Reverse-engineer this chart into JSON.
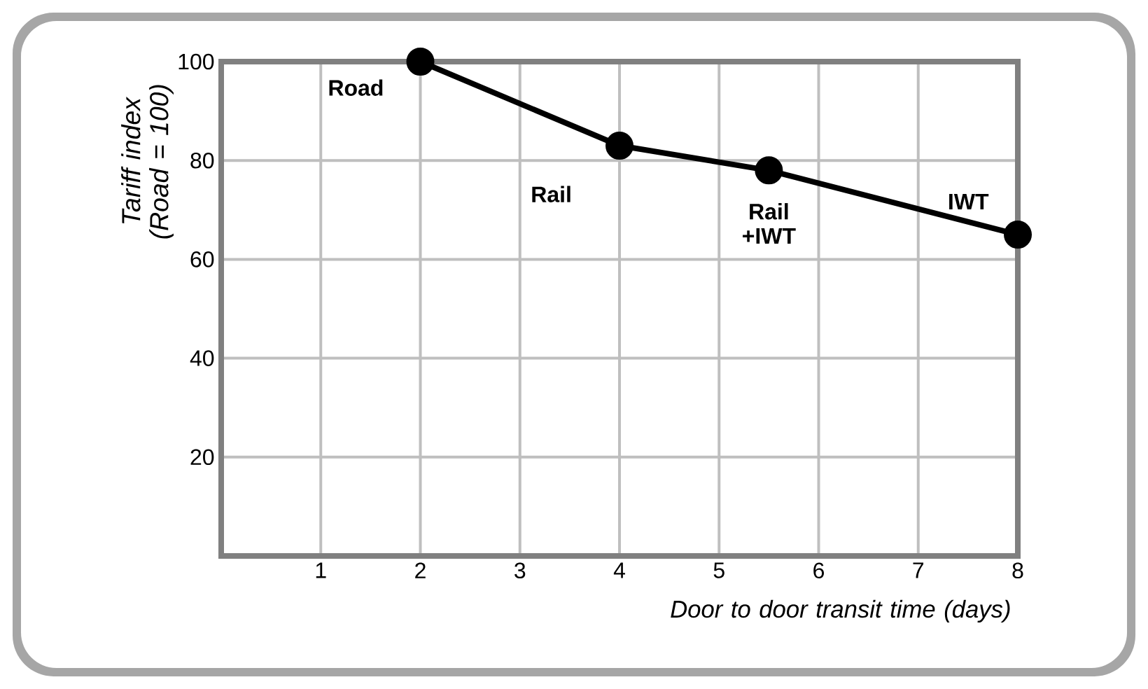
{
  "chart_data": {
    "type": "line",
    "x": [
      2,
      4,
      5.5,
      8
    ],
    "values": [
      100,
      83,
      78,
      65
    ],
    "color": "#000000",
    "marker": "circle",
    "line_style": "solid",
    "grid": true,
    "xlabel": "Door to door transit time (days)",
    "ylabel": "Tariff index (Road = 100)",
    "xlim": [
      0,
      8
    ],
    "ylim": [
      0,
      100
    ],
    "xticks": [
      1,
      2,
      3,
      4,
      5,
      6,
      7,
      8
    ],
    "yticks": [
      20,
      40,
      60,
      80,
      100
    ],
    "annotations": [
      {
        "text": "Road",
        "x": 2,
        "y": 100
      },
      {
        "text": "Rail",
        "x": 4,
        "y": 83
      },
      {
        "text": "Rail +IWT",
        "x": 5.5,
        "y": 78
      },
      {
        "text": "IWT",
        "x": 8,
        "y": 65
      }
    ]
  }
}
